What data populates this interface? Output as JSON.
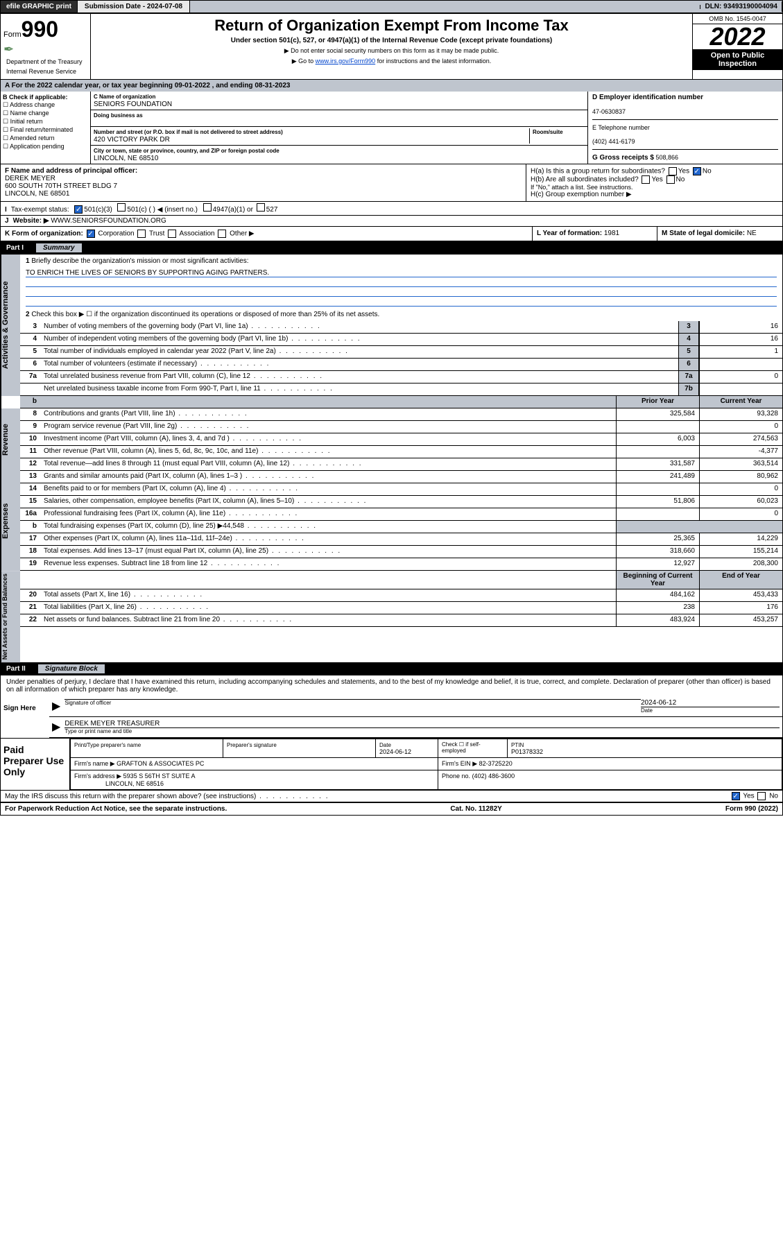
{
  "topbar": {
    "efile": "efile GRAPHIC print",
    "submission_label": "Submission Date - 2024-07-08",
    "dln": "DLN: 93493190004094"
  },
  "header": {
    "form_prefix": "Form",
    "form_number": "990",
    "title": "Return of Organization Exempt From Income Tax",
    "subtitle": "Under section 501(c), 527, or 4947(a)(1) of the Internal Revenue Code (except private foundations)",
    "note1": "▶ Do not enter social security numbers on this form as it may be made public.",
    "note2_pre": "▶ Go to ",
    "note2_link": "www.irs.gov/Form990",
    "note2_post": " for instructions and the latest information.",
    "omb": "OMB No. 1545-0047",
    "year": "2022",
    "inspection": "Open to Public Inspection",
    "dept": "Department of the Treasury",
    "irs": "Internal Revenue Service"
  },
  "secA": {
    "text": "A For the 2022 calendar year, or tax year beginning 09-01-2022   , and ending 08-31-2023"
  },
  "secB": {
    "label": "B Check if applicable:",
    "opts": [
      "Address change",
      "Name change",
      "Initial return",
      "Final return/terminated",
      "Amended return",
      "Application pending"
    ]
  },
  "secC": {
    "name_label": "C Name of organization",
    "name": "SENIORS FOUNDATION",
    "dba_label": "Doing business as",
    "dba": "",
    "street_label": "Number and street (or P.O. box if mail is not delivered to street address)",
    "room_label": "Room/suite",
    "street": "420 VICTORY PARK DR",
    "city_label": "City or town, state or province, country, and ZIP or foreign postal code",
    "city": "LINCOLN, NE  68510"
  },
  "secD": {
    "label": "D Employer identification number",
    "val": "47-0630837"
  },
  "secE": {
    "label": "E Telephone number",
    "val": "(402) 441-6179"
  },
  "secG": {
    "label": "G Gross receipts $",
    "val": "508,866"
  },
  "secF": {
    "label": "F Name and address of principal officer:",
    "name": "DEREK MEYER",
    "addr1": "600 SOUTH 70TH STREET BLDG 7",
    "addr2": "LINCOLN, NE  68501"
  },
  "secH": {
    "a": "H(a)  Is this a group return for subordinates?",
    "a_yes": "Yes",
    "a_no": "No",
    "b": "H(b)  Are all subordinates included?",
    "b_note": "If \"No,\" attach a list. See instructions.",
    "c": "H(c)  Group exemption number ▶"
  },
  "secI": {
    "label": "Tax-exempt status:",
    "opt1": "501(c)(3)",
    "opt2": "501(c) (  ) ◀ (insert no.)",
    "opt3": "4947(a)(1) or",
    "opt4": "527"
  },
  "secJ": {
    "label": "Website: ▶",
    "val": "WWW.SENIORSFOUNDATION.ORG"
  },
  "secK": {
    "label": "K Form of organization:",
    "opts": [
      "Corporation",
      "Trust",
      "Association",
      "Other ▶"
    ]
  },
  "secL": {
    "label": "L Year of formation:",
    "val": "1981"
  },
  "secM": {
    "label": "M State of legal domicile:",
    "val": "NE"
  },
  "part1": {
    "title": "Part I",
    "sub": "Summary",
    "l1": "Briefly describe the organization's mission or most significant activities:",
    "l1_val": "TO ENRICH THE LIVES OF SENIORS BY SUPPORTING AGING PARTNERS.",
    "l2": "Check this box ▶ ☐  if the organization discontinued its operations or disposed of more than 25% of its net assets.",
    "rows_gov": [
      {
        "n": "3",
        "d": "Number of voting members of the governing body (Part VI, line 1a)",
        "r": "3",
        "v": "16"
      },
      {
        "n": "4",
        "d": "Number of independent voting members of the governing body (Part VI, line 1b)",
        "r": "4",
        "v": "16"
      },
      {
        "n": "5",
        "d": "Total number of individuals employed in calendar year 2022 (Part V, line 2a)",
        "r": "5",
        "v": "1"
      },
      {
        "n": "6",
        "d": "Total number of volunteers (estimate if necessary)",
        "r": "6",
        "v": ""
      },
      {
        "n": "7a",
        "d": "Total unrelated business revenue from Part VIII, column (C), line 12",
        "r": "7a",
        "v": "0"
      },
      {
        "n": "",
        "d": "Net unrelated business taxable income from Form 990-T, Part I, line 11",
        "r": "7b",
        "v": ""
      }
    ],
    "col_prior": "Prior Year",
    "col_current": "Current Year",
    "rows_rev": [
      {
        "n": "8",
        "d": "Contributions and grants (Part VIII, line 1h)",
        "p": "325,584",
        "c": "93,328"
      },
      {
        "n": "9",
        "d": "Program service revenue (Part VIII, line 2g)",
        "p": "",
        "c": "0"
      },
      {
        "n": "10",
        "d": "Investment income (Part VIII, column (A), lines 3, 4, and 7d )",
        "p": "6,003",
        "c": "274,563"
      },
      {
        "n": "11",
        "d": "Other revenue (Part VIII, column (A), lines 5, 6d, 8c, 9c, 10c, and 11e)",
        "p": "",
        "c": "-4,377"
      },
      {
        "n": "12",
        "d": "Total revenue—add lines 8 through 11 (must equal Part VIII, column (A), line 12)",
        "p": "331,587",
        "c": "363,514"
      }
    ],
    "rows_exp": [
      {
        "n": "13",
        "d": "Grants and similar amounts paid (Part IX, column (A), lines 1–3 )",
        "p": "241,489",
        "c": "80,962"
      },
      {
        "n": "14",
        "d": "Benefits paid to or for members (Part IX, column (A), line 4)",
        "p": "",
        "c": "0"
      },
      {
        "n": "15",
        "d": "Salaries, other compensation, employee benefits (Part IX, column (A), lines 5–10)",
        "p": "51,806",
        "c": "60,023"
      },
      {
        "n": "16a",
        "d": "Professional fundraising fees (Part IX, column (A), line 11e)",
        "p": "",
        "c": "0"
      },
      {
        "n": "b",
        "d": "Total fundraising expenses (Part IX, column (D), line 25) ▶44,548",
        "p": null,
        "c": null
      },
      {
        "n": "17",
        "d": "Other expenses (Part IX, column (A), lines 11a–11d, 11f–24e)",
        "p": "25,365",
        "c": "14,229"
      },
      {
        "n": "18",
        "d": "Total expenses. Add lines 13–17 (must equal Part IX, column (A), line 25)",
        "p": "318,660",
        "c": "155,214"
      },
      {
        "n": "19",
        "d": "Revenue less expenses. Subtract line 18 from line 12",
        "p": "12,927",
        "c": "208,300"
      }
    ],
    "col_begin": "Beginning of Current Year",
    "col_end": "End of Year",
    "rows_net": [
      {
        "n": "20",
        "d": "Total assets (Part X, line 16)",
        "p": "484,162",
        "c": "453,433"
      },
      {
        "n": "21",
        "d": "Total liabilities (Part X, line 26)",
        "p": "238",
        "c": "176"
      },
      {
        "n": "22",
        "d": "Net assets or fund balances. Subtract line 21 from line 20",
        "p": "483,924",
        "c": "453,257"
      }
    ]
  },
  "part2": {
    "title": "Part II",
    "sub": "Signature Block",
    "decl": "Under penalties of perjury, I declare that I have examined this return, including accompanying schedules and statements, and to the best of my knowledge and belief, it is true, correct, and complete. Declaration of preparer (other than officer) is based on all information of which preparer has any knowledge.",
    "sign_here": "Sign Here",
    "sig_officer": "Signature of officer",
    "sig_date": "2024-06-12",
    "date_label": "Date",
    "officer_name": "DEREK MEYER TREASURER",
    "type_name": "Type or print name and title",
    "paid": "Paid Preparer Use Only",
    "prep_name_label": "Print/Type preparer's name",
    "prep_sig_label": "Preparer's signature",
    "prep_date_label": "Date",
    "prep_date": "2024-06-12",
    "check_if": "Check ☐ if self-employed",
    "ptin_label": "PTIN",
    "ptin": "P01378332",
    "firm_name_label": "Firm's name    ▶",
    "firm_name": "GRAFTON & ASSOCIATES PC",
    "firm_ein_label": "Firm's EIN ▶",
    "firm_ein": "82-3725220",
    "firm_addr_label": "Firm's address ▶",
    "firm_addr": "5935 S 56TH ST SUITE A",
    "firm_city": "LINCOLN, NE  68516",
    "phone_label": "Phone no.",
    "phone": "(402) 486-3600",
    "discuss": "May the IRS discuss this return with the preparer shown above? (see instructions)",
    "yes": "Yes",
    "no": "No"
  },
  "footer": {
    "left": "For Paperwork Reduction Act Notice, see the separate instructions.",
    "mid": "Cat. No. 11282Y",
    "right": "Form 990 (2022)"
  }
}
